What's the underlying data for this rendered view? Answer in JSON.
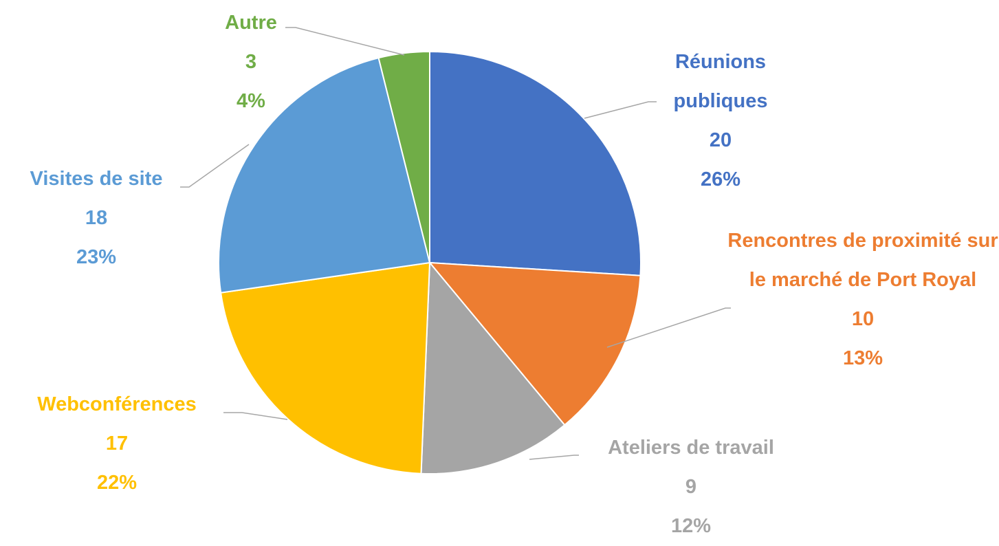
{
  "chart_data": {
    "type": "pie",
    "categories": [
      "Réunions publiques",
      "Rencontres de proximité sur le marché de Port Royal",
      "Ateliers de travail",
      "Webconférences",
      "Visites de site",
      "Autre"
    ],
    "values": [
      20,
      10,
      9,
      17,
      18,
      3
    ],
    "percent_labels": [
      "26%",
      "13%",
      "12%",
      "22%",
      "23%",
      "4%"
    ],
    "colors": [
      "#4472c4",
      "#ed7d31",
      "#a5a5a5",
      "#ffc000",
      "#5b9bd5",
      "#70ad47"
    ]
  }
}
